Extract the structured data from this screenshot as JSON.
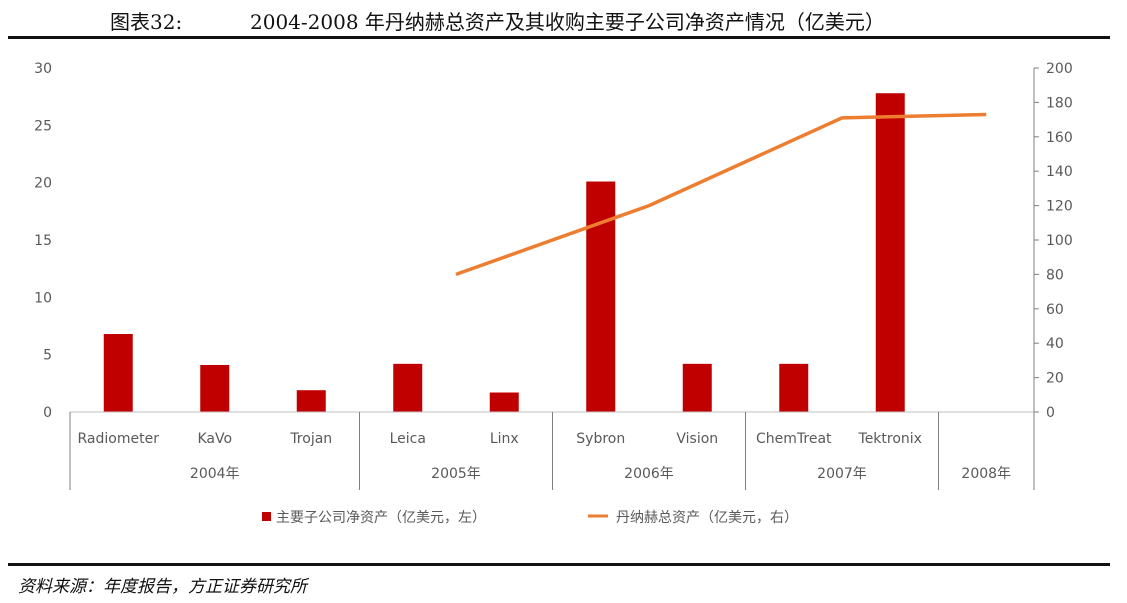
{
  "header": {
    "figure_number": "图表32:",
    "title": "2004-2008 年丹纳赫总资产及其收购主要子公司净资产情况（亿美元）"
  },
  "footer": {
    "source": "资料来源：年度报告，方正证券研究所"
  },
  "colors": {
    "bar": "#c00000",
    "line": "#ed7d31"
  },
  "chart_data": {
    "type": "bar",
    "title": "",
    "categories": [
      "Radiometer",
      "KaVo",
      "Trojan",
      "Leica",
      "Linx",
      "Sybron",
      "Vision",
      "ChemTreat",
      "Tektronix"
    ],
    "category_years": [
      "2004",
      "2004",
      "2004",
      "2005",
      "2005",
      "2006",
      "2006",
      "2007",
      "2007"
    ],
    "year_groups": [
      {
        "label": "2004年",
        "count": 3
      },
      {
        "label": "2005年",
        "count": 2
      },
      {
        "label": "2006年",
        "count": 2
      },
      {
        "label": "2007年",
        "count": 2
      },
      {
        "label": "2008年",
        "count": 1.5
      }
    ],
    "y_left": {
      "min": 0,
      "max": 30,
      "ticks": [
        "0",
        "5",
        "10",
        "15",
        "20",
        "25",
        "30"
      ]
    },
    "y_right": {
      "min": 0,
      "max": 200,
      "ticks": [
        "0",
        "20",
        "40",
        "60",
        "80",
        "100",
        "120",
        "140",
        "160",
        "180",
        "200"
      ]
    },
    "series": [
      {
        "name": "主要子公司净资产（亿美元，左）",
        "type": "bar",
        "axis": "left",
        "values": [
          6.8,
          4.1,
          1.9,
          4.2,
          1.7,
          20.1,
          4.2,
          4.2,
          27.8
        ]
      },
      {
        "name": "丹纳赫总资产（亿美元，右）",
        "type": "line",
        "axis": "right",
        "points": [
          {
            "year": "2005",
            "value": 80
          },
          {
            "year": "2006",
            "value": 120
          },
          {
            "year": "2007",
            "value": 171
          },
          {
            "year": "2008",
            "value": 173
          }
        ]
      }
    ],
    "legend_position": "bottom",
    "grid": false
  }
}
